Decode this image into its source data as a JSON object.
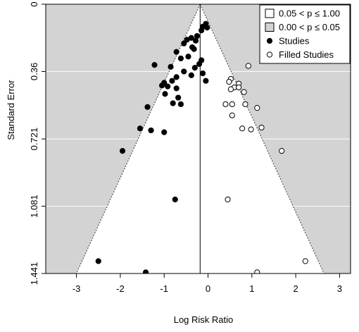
{
  "chart_data": {
    "type": "scatter",
    "xlabel": "Log Risk Ratio",
    "ylabel": "Standard Error",
    "xlim": [
      -3.7,
      3.25
    ],
    "ylim": [
      1.441,
      0
    ],
    "x_ticks": [
      -3,
      -2,
      -1,
      0,
      1,
      2,
      3
    ],
    "x_tick_labels": [
      "-3",
      "-2",
      "-1",
      "0",
      "1",
      "2",
      "3"
    ],
    "y_ticks": [
      0,
      0.36,
      0.721,
      1.081,
      1.441
    ],
    "y_tick_labels": [
      "0",
      "0.36",
      "0.721",
      "1.081",
      "1.441"
    ],
    "pooled_estimate": -0.18,
    "contour_band": {
      "lower_p": 0.05,
      "upper_p": 1.0
    },
    "legend": {
      "position": "top-right",
      "entries": [
        {
          "label": "0.05 < p ≤ 1.00",
          "symbol": "square-open"
        },
        {
          "label": "0.00 < p ≤ 0.05",
          "symbol": "square-gray"
        },
        {
          "label": "Studies",
          "symbol": "circle-filled"
        },
        {
          "label": "Filled Studies",
          "symbol": "circle-open"
        }
      ]
    },
    "colors": {
      "significant_region": "#d3d3d3",
      "nonsignificant_region": "#ffffff",
      "grid": "#ffffff",
      "points": "#000000"
    },
    "series": [
      {
        "name": "Studies",
        "marker": "circle-filled",
        "points": [
          {
            "x": -0.05,
            "y": 0.105
          },
          {
            "x": -0.12,
            "y": 0.12
          },
          {
            "x": -0.02,
            "y": 0.125
          },
          {
            "x": -0.15,
            "y": 0.14
          },
          {
            "x": -0.25,
            "y": 0.17
          },
          {
            "x": -0.38,
            "y": 0.18
          },
          {
            "x": -0.48,
            "y": 0.19
          },
          {
            "x": -0.28,
            "y": 0.195
          },
          {
            "x": -0.55,
            "y": 0.21
          },
          {
            "x": -0.36,
            "y": 0.23
          },
          {
            "x": -0.32,
            "y": 0.24
          },
          {
            "x": -0.72,
            "y": 0.255
          },
          {
            "x": -0.45,
            "y": 0.28
          },
          {
            "x": -0.62,
            "y": 0.29
          },
          {
            "x": -0.15,
            "y": 0.3
          },
          {
            "x": -0.2,
            "y": 0.32
          },
          {
            "x": -1.22,
            "y": 0.325
          },
          {
            "x": -0.85,
            "y": 0.335
          },
          {
            "x": -0.3,
            "y": 0.34
          },
          {
            "x": -0.55,
            "y": 0.36
          },
          {
            "x": -0.12,
            "y": 0.37
          },
          {
            "x": -0.38,
            "y": 0.38
          },
          {
            "x": -0.72,
            "y": 0.39
          },
          {
            "x": -0.05,
            "y": 0.41
          },
          {
            "x": -0.82,
            "y": 0.41
          },
          {
            "x": -1.0,
            "y": 0.42
          },
          {
            "x": -1.05,
            "y": 0.435
          },
          {
            "x": -0.92,
            "y": 0.44
          },
          {
            "x": -0.72,
            "y": 0.45
          },
          {
            "x": -0.98,
            "y": 0.48
          },
          {
            "x": -0.68,
            "y": 0.5
          },
          {
            "x": -0.8,
            "y": 0.53
          },
          {
            "x": -0.62,
            "y": 0.535
          },
          {
            "x": -1.38,
            "y": 0.55
          },
          {
            "x": -1.55,
            "y": 0.665
          },
          {
            "x": -1.3,
            "y": 0.675
          },
          {
            "x": -1.0,
            "y": 0.685
          },
          {
            "x": -1.95,
            "y": 0.785
          },
          {
            "x": -0.75,
            "y": 1.045
          },
          {
            "x": -2.5,
            "y": 1.375
          },
          {
            "x": -1.42,
            "y": 1.435
          }
        ]
      },
      {
        "name": "Filled Studies",
        "marker": "circle-open",
        "points": [
          {
            "x": 0.92,
            "y": 0.33
          },
          {
            "x": 0.52,
            "y": 0.4
          },
          {
            "x": 0.48,
            "y": 0.415
          },
          {
            "x": 0.7,
            "y": 0.425
          },
          {
            "x": 0.6,
            "y": 0.445
          },
          {
            "x": 0.7,
            "y": 0.445
          },
          {
            "x": 0.52,
            "y": 0.455
          },
          {
            "x": 0.82,
            "y": 0.47
          },
          {
            "x": 0.4,
            "y": 0.535
          },
          {
            "x": 0.55,
            "y": 0.535
          },
          {
            "x": 0.85,
            "y": 0.535
          },
          {
            "x": 1.12,
            "y": 0.555
          },
          {
            "x": 0.55,
            "y": 0.595
          },
          {
            "x": 0.78,
            "y": 0.665
          },
          {
            "x": 0.98,
            "y": 0.67
          },
          {
            "x": 1.22,
            "y": 0.66
          },
          {
            "x": 1.68,
            "y": 0.785
          },
          {
            "x": 0.45,
            "y": 1.045
          },
          {
            "x": 2.22,
            "y": 1.375
          },
          {
            "x": 1.12,
            "y": 1.435
          }
        ]
      }
    ]
  }
}
